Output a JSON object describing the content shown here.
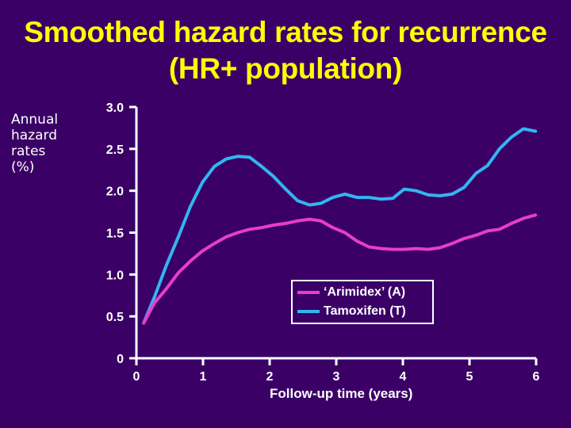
{
  "title": {
    "line1": "Smoothed hazard rates for recurrence",
    "line2": "(HR+ population)"
  },
  "y_axis": {
    "label_lines": [
      "Annual",
      "hazard",
      "rates",
      "(%)"
    ],
    "ticks": [
      "3.0",
      "2.5",
      "2.0",
      "1.5",
      "1.0",
      "0.5",
      "0"
    ]
  },
  "x_axis": {
    "label": "Follow-up time (years)",
    "ticks": [
      "0",
      "1",
      "2",
      "3",
      "4",
      "5",
      "6"
    ]
  },
  "legend": {
    "items": [
      {
        "label": "‘Arimidex’ (A)",
        "color": "#e83ccf"
      },
      {
        "label": "Tamoxifen (T)",
        "color": "#33b5f0"
      }
    ]
  },
  "colors": {
    "background": "#3a0066",
    "title": "#ffff00",
    "axis": "#ffffff",
    "arimidex": "#e83ccf",
    "tamoxifen": "#33b5f0"
  },
  "chart_data": {
    "type": "line",
    "title": "Smoothed hazard rates for recurrence (HR+ population)",
    "xlabel": "Follow-up time (years)",
    "ylabel": "Annual hazard rates (%)",
    "xlim": [
      0,
      6
    ],
    "ylim": [
      0,
      3.0
    ],
    "xticks": [
      0,
      1,
      2,
      3,
      4,
      5,
      6
    ],
    "yticks": [
      0,
      0.5,
      1.0,
      1.5,
      2.0,
      2.5,
      3.0
    ],
    "grid": false,
    "legend_position": "lower right (inside plot)",
    "x": [
      0.11,
      0.27,
      0.45,
      0.63,
      0.81,
      0.99,
      1.17,
      1.35,
      1.52,
      1.7,
      1.88,
      2.06,
      2.24,
      2.42,
      2.6,
      2.77,
      2.95,
      3.13,
      3.31,
      3.49,
      3.67,
      3.85,
      4.02,
      4.2,
      4.38,
      4.56,
      4.74,
      4.92,
      5.1,
      5.27,
      5.45,
      5.63,
      5.81,
      5.99
    ],
    "series": [
      {
        "name": "‘Arimidex’ (A)",
        "color": "#e83ccf",
        "values": [
          0.42,
          0.66,
          0.83,
          1.02,
          1.16,
          1.28,
          1.37,
          1.45,
          1.5,
          1.54,
          1.56,
          1.59,
          1.61,
          1.64,
          1.66,
          1.64,
          1.56,
          1.5,
          1.4,
          1.33,
          1.31,
          1.3,
          1.3,
          1.31,
          1.3,
          1.32,
          1.37,
          1.43,
          1.47,
          1.52,
          1.54,
          1.61,
          1.67,
          1.71
        ]
      },
      {
        "name": "Tamoxifen (T)",
        "color": "#33b5f0",
        "values": [
          0.42,
          0.73,
          1.11,
          1.45,
          1.81,
          2.1,
          2.29,
          2.38,
          2.41,
          2.4,
          2.29,
          2.17,
          2.02,
          1.88,
          1.83,
          1.85,
          1.92,
          1.96,
          1.92,
          1.92,
          1.9,
          1.91,
          2.02,
          2.0,
          1.95,
          1.94,
          1.96,
          2.04,
          2.21,
          2.3,
          2.5,
          2.64,
          2.74,
          2.71
        ]
      }
    ]
  }
}
